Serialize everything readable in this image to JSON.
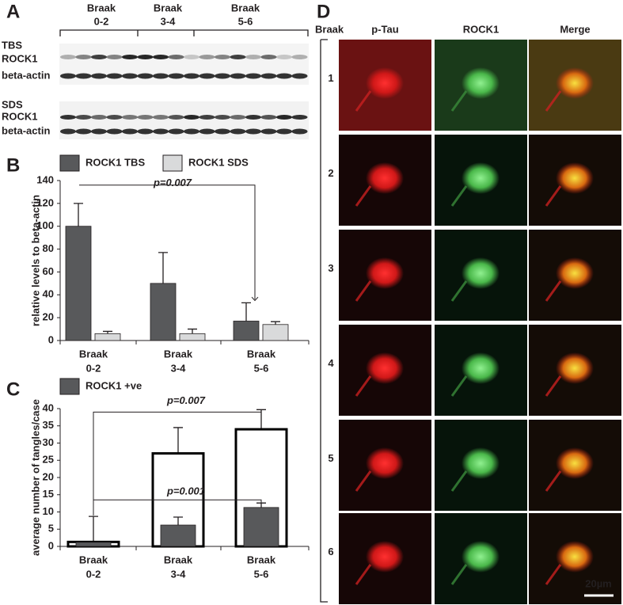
{
  "panel_labels": [
    "A",
    "B",
    "C",
    "D"
  ],
  "blot": {
    "groups": [
      [
        "Braak",
        "0-2"
      ],
      [
        "Braak",
        "3-4"
      ],
      [
        "Braak",
        "5-6"
      ]
    ],
    "rows": [
      "TBS",
      "ROCK1",
      "beta-actin",
      "SDS",
      "ROCK1",
      "beta-actin"
    ]
  },
  "chart_data": [
    {
      "type": "bar",
      "barmode": "group",
      "ylabel": "relative levels to beta-actin",
      "categories": [
        [
          "Braak",
          "0-2"
        ],
        [
          "Braak",
          "3-4"
        ],
        [
          "Braak",
          "5-6"
        ]
      ],
      "series": [
        {
          "name": "ROCK1 TBS",
          "color": "#58595b",
          "values": [
            100,
            50,
            17
          ],
          "errors": [
            20,
            27,
            16
          ]
        },
        {
          "name": "ROCK1 SDS",
          "color": "#d9dadb",
          "values": [
            6,
            6,
            14
          ],
          "errors": [
            2,
            4,
            2.5
          ]
        }
      ],
      "ylim": [
        0,
        140
      ],
      "yticks": [
        0,
        20,
        40,
        60,
        80,
        100,
        120,
        140
      ],
      "annotations": [
        "p=0.007"
      ]
    },
    {
      "type": "bar",
      "barmode": "overlay",
      "ylabel": "average number of tangles/case",
      "categories": [
        [
          "Braak",
          "0-2"
        ],
        [
          "Braak",
          "3-4"
        ],
        [
          "Braak",
          "5-6"
        ]
      ],
      "series": [
        {
          "color": "#ffffff",
          "edgecolor": "#000000",
          "values": [
            1.3,
            27,
            34
          ],
          "errors": [
            7.4,
            7.5,
            5.7
          ]
        },
        {
          "name": "ROCK1 +ve",
          "color": "#58595b",
          "values": [
            1.2,
            6.2,
            11.3
          ],
          "errors": [
            null,
            2.3,
            1.3
          ]
        }
      ],
      "ylim": [
        0,
        40
      ],
      "yticks": [
        0,
        5,
        10,
        15,
        20,
        25,
        30,
        35,
        40
      ],
      "annotations": [
        "p=0.007",
        "p=0.001"
      ]
    }
  ],
  "microscopy": {
    "row_header": "Braak",
    "columns": [
      "p-Tau",
      "ROCK1",
      "Merge"
    ],
    "rows": [
      "1",
      "2",
      "3",
      "4",
      "5",
      "6"
    ],
    "scale_bar": "20µm"
  }
}
